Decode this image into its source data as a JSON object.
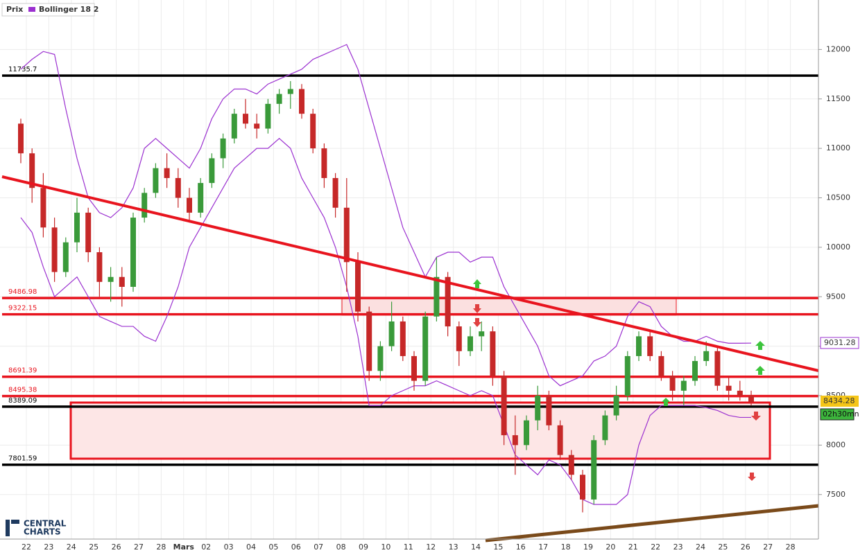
{
  "legend": {
    "items": [
      "Prix",
      "Bollinger 18 2"
    ]
  },
  "timeframe": "02h30mn",
  "branding": [
    "CENTRAL",
    "CHARTS"
  ],
  "chart_data": {
    "type": "candlestick",
    "categories": [
      "22",
      null,
      "23",
      null,
      "24",
      null,
      "25",
      null,
      "26",
      null,
      "27",
      null,
      "28",
      null,
      "Mars",
      null,
      "02",
      null,
      "03",
      null,
      "04",
      null,
      "05",
      null,
      "06",
      null,
      "07",
      null,
      "08",
      null,
      "09",
      null,
      "10",
      null,
      "11",
      null,
      "12",
      null,
      "13",
      null,
      "14",
      null,
      "15",
      null,
      "16",
      null,
      "17",
      null,
      "18",
      null,
      "19",
      null,
      "20",
      null,
      "21",
      null,
      "22",
      null,
      "23",
      null,
      "24",
      null,
      "25",
      null,
      "26",
      null,
      "27",
      null,
      "28",
      null
    ],
    "ylim": [
      7050,
      12500
    ],
    "yticks": [
      7500,
      8000,
      8500,
      9000,
      9500,
      10000,
      10500,
      11000,
      11500,
      12000
    ],
    "grid": true,
    "up_color": "#3a9a3a",
    "down_color": "#c62828",
    "series": [
      {
        "name": "Prix",
        "open": [
          11250,
          10950,
          10600,
          10200,
          9750,
          10050,
          10350,
          9950,
          9650,
          9700,
          9600,
          10300,
          10550,
          10800,
          10700,
          10500,
          10350,
          10650,
          10900,
          11100,
          11350,
          11250,
          11200,
          11450,
          11550,
          11600,
          11350,
          11000,
          10700,
          10400,
          9850,
          9350,
          8750,
          9000,
          9250,
          8900,
          8650,
          9300,
          9700,
          9200,
          8950,
          9100,
          9150,
          8700,
          8100,
          8000,
          8250,
          8500,
          8200,
          7900,
          7700,
          7450,
          8050,
          8300,
          8500,
          8900,
          9100,
          8900,
          8700,
          8550,
          8650,
          8850,
          8950,
          8600,
          8550,
          8500,
          null,
          null,
          null,
          null
        ],
        "high": [
          11300,
          11000,
          10750,
          10300,
          10100,
          10500,
          10400,
          10000,
          9800,
          9800,
          10350,
          10600,
          10850,
          10950,
          10800,
          10600,
          10700,
          10950,
          11150,
          11400,
          11500,
          11350,
          11500,
          11600,
          11680,
          11650,
          11400,
          11050,
          10750,
          10700,
          9950,
          9400,
          9050,
          9450,
          9300,
          8950,
          9350,
          9900,
          9750,
          9250,
          9200,
          9250,
          9200,
          8750,
          8300,
          8300,
          8600,
          8550,
          8250,
          7950,
          7750,
          8100,
          8350,
          8600,
          8950,
          9150,
          9150,
          8950,
          8750,
          8700,
          8900,
          9050,
          9000,
          8700,
          8650,
          8550,
          null,
          null,
          null,
          null
        ],
        "low": [
          10850,
          10450,
          10100,
          9650,
          9700,
          9950,
          9850,
          9500,
          9450,
          9400,
          9550,
          10250,
          10500,
          10600,
          10400,
          10250,
          10300,
          10600,
          10800,
          11050,
          11200,
          11100,
          11150,
          11350,
          11400,
          11300,
          10950,
          10600,
          10300,
          9550,
          9250,
          8650,
          8650,
          8950,
          8850,
          8550,
          8600,
          9250,
          9100,
          8800,
          8900,
          8950,
          8600,
          8000,
          7700,
          7950,
          8150,
          8150,
          7850,
          7650,
          7320,
          7400,
          8000,
          8250,
          8450,
          8850,
          8850,
          8650,
          8450,
          8400,
          8600,
          8800,
          8550,
          8450,
          8450,
          8400,
          null,
          null,
          null,
          null
        ],
        "close": [
          10950,
          10600,
          10200,
          9750,
          10050,
          10350,
          9950,
          9650,
          9700,
          9600,
          10300,
          10550,
          10800,
          10700,
          10500,
          10350,
          10650,
          10900,
          11100,
          11350,
          11250,
          11200,
          11450,
          11550,
          11600,
          11350,
          11000,
          10700,
          10400,
          9850,
          9350,
          8750,
          9000,
          9250,
          8900,
          8650,
          9300,
          9700,
          9200,
          8950,
          9100,
          9150,
          8700,
          8100,
          8000,
          8250,
          8500,
          8200,
          7900,
          7700,
          7450,
          8050,
          8300,
          8500,
          8900,
          9100,
          8900,
          8700,
          8550,
          8650,
          8850,
          8950,
          8600,
          8550,
          8500,
          8434.28,
          null,
          null,
          null,
          null
        ]
      },
      {
        "name": "Bollinger 18 2",
        "color": "#9b30d0",
        "upper": [
          11800,
          11900,
          11980,
          11950,
          11400,
          10900,
          10500,
          10350,
          10300,
          10400,
          10600,
          11000,
          11100,
          11000,
          10900,
          10800,
          11000,
          11300,
          11500,
          11600,
          11600,
          11550,
          11650,
          11700,
          11750,
          11800,
          11900,
          11950,
          12000,
          12050,
          11800,
          11400,
          11000,
          10600,
          10200,
          9950,
          9700,
          9900,
          9950,
          9950,
          9850,
          9900,
          9900,
          9600,
          9400,
          9200,
          9000,
          8700,
          8600,
          8650,
          8700,
          8850,
          8900,
          9000,
          9300,
          9450,
          9400,
          9200,
          9100,
          9050,
          9050,
          9100,
          9050,
          9030,
          9030,
          9031.28,
          null,
          null,
          null,
          null
        ],
        "lower": [
          10300,
          10150,
          9800,
          9500,
          9600,
          9700,
          9500,
          9300,
          9250,
          9200,
          9200,
          9100,
          9050,
          9300,
          9600,
          10000,
          10200,
          10400,
          10600,
          10800,
          10900,
          11000,
          11000,
          11100,
          11000,
          10700,
          10500,
          10300,
          10000,
          9600,
          9100,
          8400,
          8400,
          8500,
          8550,
          8600,
          8600,
          8650,
          8600,
          8550,
          8500,
          8550,
          8500,
          8200,
          7900,
          7800,
          7700,
          7850,
          7800,
          7650,
          7450,
          7400,
          7400,
          7400,
          7500,
          8000,
          8300,
          8400,
          8400,
          8400,
          8400,
          8380,
          8350,
          8300,
          8280,
          8280,
          null,
          null,
          null,
          null
        ]
      }
    ],
    "levels": [
      {
        "value": 11735.7,
        "color": "#000000"
      },
      {
        "value": 9486.98,
        "color": "#e8141e"
      },
      {
        "value": 9322.15,
        "color": "#e8141e"
      },
      {
        "value": 8691.39,
        "color": "#e8141e"
      },
      {
        "value": 8495.38,
        "color": "#e8141e"
      },
      {
        "value": 8389.09,
        "color": "#000000"
      },
      {
        "value": 7801.59,
        "color": "#000000"
      }
    ]
  }
}
